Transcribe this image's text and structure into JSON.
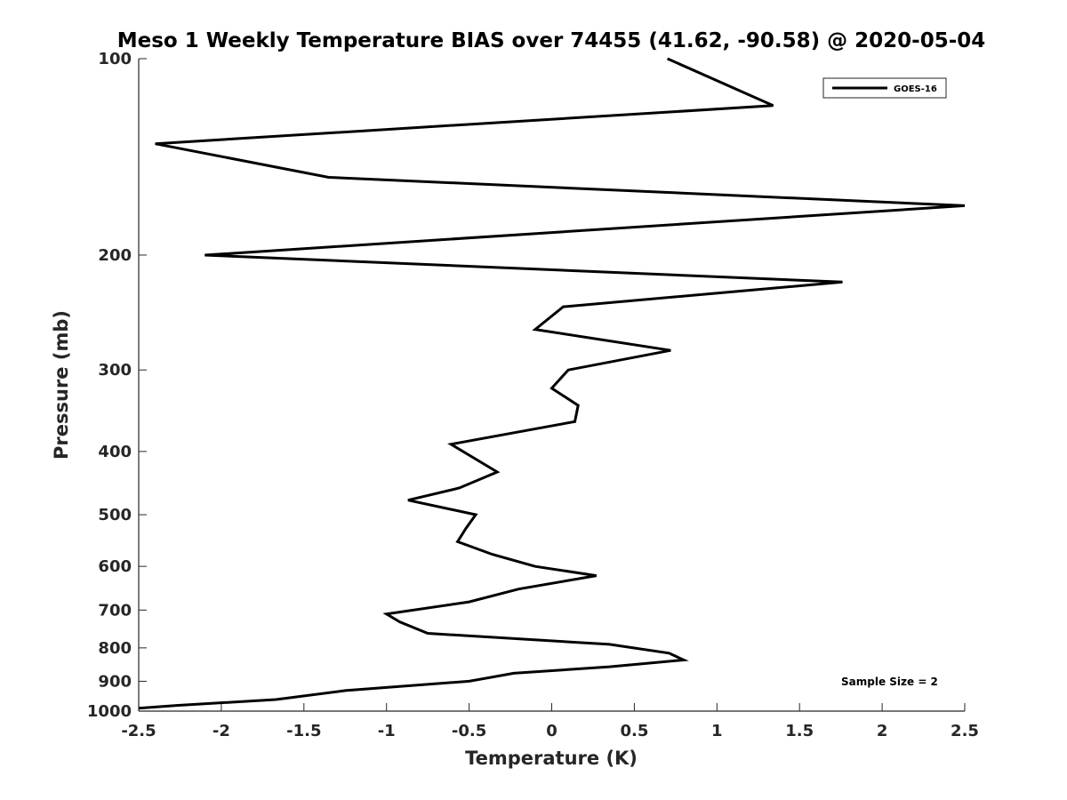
{
  "chart_data": {
    "type": "line",
    "title": "Meso 1 Weekly Temperature BIAS over 74455 (41.62, -90.58) @ 2020-05-04",
    "xlabel": "Temperature (K)",
    "ylabel": "Pressure (mb)",
    "xlim": [
      -2.5,
      2.5
    ],
    "ylim": [
      100,
      1000
    ],
    "y_scale": "log",
    "y_reversed": true,
    "grid": false,
    "legend_position": "top-right",
    "x_ticks": [
      -2.5,
      -2,
      -1.5,
      -1,
      -0.5,
      0,
      0.5,
      1,
      1.5,
      2,
      2.5
    ],
    "x_tick_labels": [
      "-2.5",
      "-2",
      "-1.5",
      "-1",
      "-0.5",
      "0",
      "0.5",
      "1",
      "1.5",
      "2",
      "2.5"
    ],
    "y_ticks": [
      100,
      200,
      300,
      400,
      500,
      600,
      700,
      800,
      900,
      1000
    ],
    "y_tick_labels": [
      "100",
      "200",
      "300",
      "400",
      "500",
      "600",
      "700",
      "800",
      "900",
      "1000"
    ],
    "series": [
      {
        "name": "GOES-16",
        "color": "#000000",
        "x": [
          0.7,
          1.34,
          -2.4,
          -1.35,
          2.5,
          -2.1,
          1.76,
          0.07,
          -0.1,
          0.72,
          0.1,
          0.0,
          0.16,
          0.14,
          -0.61,
          -0.33,
          -0.56,
          -0.87,
          -0.46,
          -0.52,
          -0.57,
          -0.36,
          -0.1,
          0.27,
          -0.2,
          -0.5,
          -1.0,
          -0.92,
          -0.75,
          0.35,
          0.71,
          0.8,
          0.35,
          -0.23,
          -0.5,
          -1.25,
          -1.67,
          -2.27,
          -2.5
        ],
        "y": [
          100,
          118,
          135,
          152,
          168,
          200,
          220,
          240,
          260,
          280,
          300,
          320,
          340,
          360,
          390,
          430,
          455,
          475,
          500,
          525,
          550,
          575,
          600,
          620,
          650,
          680,
          710,
          730,
          760,
          790,
          815,
          835,
          855,
          875,
          900,
          930,
          960,
          980,
          990
        ]
      }
    ],
    "annotations": [
      "Sample Size = 2"
    ]
  }
}
